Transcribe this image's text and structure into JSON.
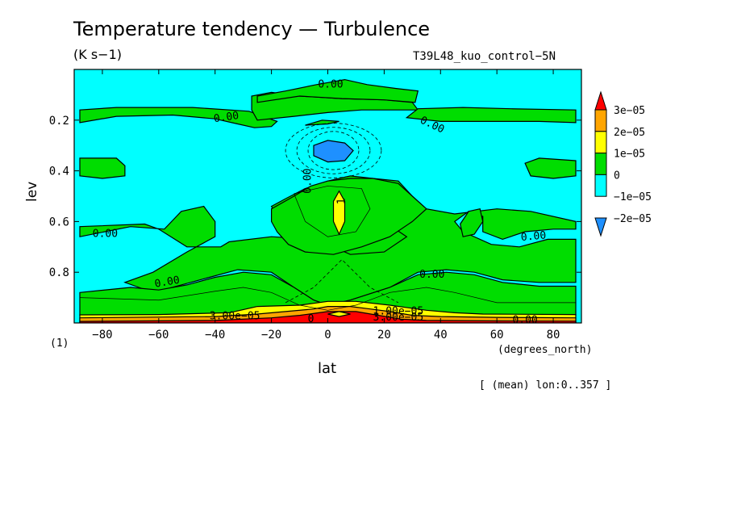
{
  "chart_data": {
    "type": "heatmap",
    "title": "Temperature tendency — Turbulence",
    "subtitle": "(K s−1)",
    "experiment": "T39L48_kuo_control−5N",
    "xlabel": "lat",
    "x_units": "(degrees_north)",
    "ylabel": "lev",
    "y_units": "(1)",
    "averaging_note": "[ (mean) lon:0..357 ]",
    "xlim": [
      -90,
      90
    ],
    "ylim": [
      1.0,
      0.0
    ],
    "x_ticks": [
      -80,
      -60,
      -40,
      -20,
      0,
      20,
      40,
      60,
      80
    ],
    "x_tick_labels": [
      "−80",
      "−60",
      "−40",
      "−20",
      "0",
      "20",
      "40",
      "60",
      "80"
    ],
    "y_ticks": [
      0.2,
      0.4,
      0.6,
      0.8
    ],
    "y_tick_labels": [
      "0.2",
      "0.4",
      "0.6",
      "0.8"
    ],
    "colorbar": {
      "levels": [
        -2e-05,
        -1e-05,
        0,
        1e-05,
        2e-05,
        3e-05
      ],
      "labels": [
        "−2e−05",
        "−1e−05",
        "0",
        "1e−05",
        "2e−05",
        "3e−05"
      ],
      "colors": [
        "#1e90ff",
        "#00ffff",
        "#00dd00",
        "#ffff00",
        "#ffa500",
        "#ff0000"
      ]
    },
    "background_color": "#00ffff",
    "contour_labels": [
      {
        "text": "0.00",
        "lat": 1,
        "lev": 0.06,
        "rot": 0
      },
      {
        "text": "0.00",
        "lat": -36,
        "lev": 0.19,
        "rot": -8
      },
      {
        "text": "0.00",
        "lat": 37,
        "lev": 0.22,
        "rot": 25
      },
      {
        "text": "0.00",
        "lat": -7,
        "lev": 0.44,
        "rot": -90
      },
      {
        "text": "0.00",
        "lat": -79,
        "lev": 0.65,
        "rot": 0
      },
      {
        "text": "0.00",
        "lat": 73,
        "lev": 0.66,
        "rot": -5
      },
      {
        "text": "0.00",
        "lat": -57,
        "lev": 0.84,
        "rot": -10
      },
      {
        "text": "0.00",
        "lat": 37,
        "lev": 0.81,
        "rot": 0
      },
      {
        "text": "1",
        "lat": 5,
        "lev": 0.52,
        "rot": -90
      },
      {
        "text": "0.00",
        "lat": 70,
        "lev": 0.99,
        "rot": 0
      },
      {
        "text": "1.00e−05",
        "lat": 25,
        "lev": 0.955,
        "rot": 0
      },
      {
        "text": "3.00e−05",
        "lat": -33,
        "lev": 0.975,
        "rot": 0
      },
      {
        "text": "3.00e−05",
        "lat": 25,
        "lev": 0.98,
        "rot": 0
      },
      {
        "text": "0",
        "lat": -6,
        "lev": 0.985,
        "rot": 0
      }
    ],
    "regions": [
      {
        "color": "#00dd00",
        "points": [
          [
            -88,
            0.21
          ],
          [
            -75,
            0.185
          ],
          [
            -55,
            0.18
          ],
          [
            -40,
            0.195
          ],
          [
            -32,
            0.215
          ],
          [
            -26,
            0.23
          ],
          [
            -20,
            0.225
          ],
          [
            -18,
            0.205
          ],
          [
            -28,
            0.165
          ],
          [
            -48,
            0.15
          ],
          [
            -75,
            0.15
          ],
          [
            -88,
            0.16
          ]
        ]
      },
      {
        "color": "#00dd00",
        "points": [
          [
            -25,
            0.2
          ],
          [
            -12,
            0.185
          ],
          [
            0,
            0.17
          ],
          [
            12,
            0.16
          ],
          [
            24,
            0.16
          ],
          [
            32,
            0.16
          ],
          [
            30,
            0.13
          ],
          [
            20,
            0.12
          ],
          [
            5,
            0.115
          ],
          [
            -10,
            0.105
          ],
          [
            -20,
            0.09
          ],
          [
            -27,
            0.105
          ],
          [
            -27,
            0.16
          ]
        ]
      },
      {
        "color": "#00dd00",
        "points": [
          [
            -25,
            0.105
          ],
          [
            -15,
            0.085
          ],
          [
            -4,
            0.06
          ],
          [
            6,
            0.04
          ],
          [
            14,
            0.06
          ],
          [
            24,
            0.075
          ],
          [
            32,
            0.085
          ],
          [
            31,
            0.13
          ],
          [
            20,
            0.12
          ],
          [
            5,
            0.115
          ],
          [
            -10,
            0.105
          ],
          [
            -25,
            0.13
          ]
        ]
      },
      {
        "color": "#00dd00",
        "points": [
          [
            -8,
            0.22
          ],
          [
            -2,
            0.2
          ],
          [
            4,
            0.205
          ],
          [
            0,
            0.215
          ]
        ]
      },
      {
        "color": "#00dd00",
        "points": [
          [
            88,
            0.16
          ],
          [
            65,
            0.155
          ],
          [
            48,
            0.15
          ],
          [
            32,
            0.155
          ],
          [
            28,
            0.19
          ],
          [
            40,
            0.205
          ],
          [
            58,
            0.205
          ],
          [
            75,
            0.205
          ],
          [
            88,
            0.21
          ]
        ]
      },
      {
        "color": "#00dd00",
        "points": [
          [
            -88,
            0.35
          ],
          [
            -75,
            0.35
          ],
          [
            -72,
            0.38
          ],
          [
            -72,
            0.42
          ],
          [
            -80,
            0.43
          ],
          [
            -88,
            0.42
          ]
        ]
      },
      {
        "color": "#00dd00",
        "points": [
          [
            88,
            0.36
          ],
          [
            75,
            0.35
          ],
          [
            70,
            0.37
          ],
          [
            72,
            0.42
          ],
          [
            80,
            0.43
          ],
          [
            88,
            0.42
          ]
        ]
      },
      {
        "color": "#00dd00",
        "points": [
          [
            -88,
            0.66
          ],
          [
            -70,
            0.62
          ],
          [
            -58,
            0.63
          ],
          [
            -52,
            0.56
          ],
          [
            -44,
            0.54
          ],
          [
            -40,
            0.6
          ],
          [
            -40,
            0.66
          ],
          [
            -50,
            0.72
          ],
          [
            -62,
            0.8
          ],
          [
            -72,
            0.84
          ],
          [
            -62,
            0.88
          ],
          [
            -52,
            0.85
          ],
          [
            -42,
            0.82
          ],
          [
            -32,
            0.79
          ],
          [
            -20,
            0.8
          ],
          [
            -12,
            0.86
          ],
          [
            -5,
            0.91
          ],
          [
            0,
            0.93
          ],
          [
            8,
            0.91
          ],
          [
            22,
            0.86
          ],
          [
            32,
            0.8
          ],
          [
            42,
            0.79
          ],
          [
            52,
            0.8
          ],
          [
            62,
            0.83
          ],
          [
            75,
            0.84
          ],
          [
            88,
            0.84
          ],
          [
            88,
            0.67
          ],
          [
            78,
            0.67
          ],
          [
            68,
            0.7
          ],
          [
            58,
            0.69
          ],
          [
            48,
            0.64
          ],
          [
            45,
            0.6
          ],
          [
            50,
            0.56
          ],
          [
            55,
            0.58
          ],
          [
            55,
            0.64
          ],
          [
            62,
            0.67
          ],
          [
            70,
            0.64
          ],
          [
            80,
            0.63
          ],
          [
            88,
            0.63
          ],
          [
            88,
            0.6
          ],
          [
            72,
            0.56
          ],
          [
            60,
            0.55
          ],
          [
            45,
            0.57
          ],
          [
            35,
            0.55
          ],
          [
            30,
            0.5
          ],
          [
            25,
            0.44
          ],
          [
            16,
            0.43
          ],
          [
            8,
            0.42
          ],
          [
            0,
            0.44
          ],
          [
            -8,
            0.47
          ],
          [
            -15,
            0.51
          ],
          [
            -20,
            0.54
          ],
          [
            -18,
            0.58
          ],
          [
            -10,
            0.6
          ],
          [
            -2,
            0.68
          ],
          [
            8,
            0.73
          ],
          [
            20,
            0.72
          ],
          [
            28,
            0.66
          ],
          [
            20,
            0.6
          ],
          [
            15,
            0.56
          ],
          [
            10,
            0.5
          ],
          [
            5,
            0.45
          ],
          [
            -2,
            0.46
          ],
          [
            -6,
            0.5
          ],
          [
            -5,
            0.57
          ],
          [
            0,
            0.62
          ],
          [
            -5,
            0.67
          ],
          [
            -20,
            0.66
          ],
          [
            -35,
            0.68
          ],
          [
            -38,
            0.7
          ],
          [
            -50,
            0.7
          ],
          [
            -60,
            0.63
          ],
          [
            -65,
            0.61
          ],
          [
            -88,
            0.62
          ]
        ]
      },
      {
        "color": "#00dd00",
        "points": [
          [
            -20,
            0.55
          ],
          [
            -12,
            0.5
          ],
          [
            -6,
            0.46
          ],
          [
            0,
            0.44
          ],
          [
            8,
            0.43
          ],
          [
            16,
            0.43
          ],
          [
            25,
            0.45
          ],
          [
            30,
            0.5
          ],
          [
            35,
            0.55
          ],
          [
            30,
            0.6
          ],
          [
            22,
            0.66
          ],
          [
            12,
            0.7
          ],
          [
            2,
            0.73
          ],
          [
            -8,
            0.72
          ],
          [
            -14,
            0.69
          ],
          [
            -18,
            0.64
          ],
          [
            -20,
            0.6
          ]
        ]
      },
      {
        "color": "#00dd00",
        "points": [
          [
            47,
            0.61
          ],
          [
            50,
            0.56
          ],
          [
            54,
            0.55
          ],
          [
            55,
            0.6
          ],
          [
            52,
            0.65
          ],
          [
            48,
            0.66
          ]
        ]
      },
      {
        "color": "#00dd00",
        "points": [
          [
            -88,
            0.88
          ],
          [
            -70,
            0.86
          ],
          [
            -60,
            0.87
          ],
          [
            -50,
            0.85
          ],
          [
            -40,
            0.82
          ],
          [
            -30,
            0.8
          ],
          [
            -20,
            0.81
          ],
          [
            -12,
            0.86
          ],
          [
            -5,
            0.91
          ],
          [
            0,
            0.93
          ],
          [
            8,
            0.91
          ],
          [
            22,
            0.86
          ],
          [
            32,
            0.81
          ],
          [
            42,
            0.8
          ],
          [
            52,
            0.81
          ],
          [
            62,
            0.84
          ],
          [
            75,
            0.855
          ],
          [
            88,
            0.855
          ],
          [
            88,
            0.97
          ],
          [
            -88,
            0.97
          ]
        ]
      },
      {
        "color": "#1e90ff",
        "points": [
          [
            -5,
            0.3
          ],
          [
            0,
            0.28
          ],
          [
            6,
            0.29
          ],
          [
            9,
            0.32
          ],
          [
            6,
            0.36
          ],
          [
            0,
            0.365
          ],
          [
            -5,
            0.34
          ]
        ]
      },
      {
        "color": "#ffff00",
        "points": [
          [
            2,
            0.52
          ],
          [
            4,
            0.48
          ],
          [
            6,
            0.52
          ],
          [
            6,
            0.6
          ],
          [
            4,
            0.65
          ],
          [
            2,
            0.6
          ]
        ]
      },
      {
        "color": "#ffff00",
        "points": [
          [
            -35,
            0.96
          ],
          [
            -25,
            0.935
          ],
          [
            -10,
            0.93
          ],
          [
            0,
            0.915
          ],
          [
            10,
            0.915
          ],
          [
            22,
            0.93
          ],
          [
            35,
            0.95
          ],
          [
            45,
            0.96
          ],
          [
            55,
            0.965
          ],
          [
            88,
            0.967
          ],
          [
            88,
            1.0
          ],
          [
            -88,
            1.0
          ],
          [
            -88,
            0.968
          ],
          [
            -60,
            0.967
          ]
        ]
      },
      {
        "color": "#ffa500",
        "points": [
          [
            -25,
            0.965
          ],
          [
            -15,
            0.955
          ],
          [
            -5,
            0.945
          ],
          [
            0,
            0.935
          ],
          [
            8,
            0.935
          ],
          [
            15,
            0.945
          ],
          [
            22,
            0.955
          ],
          [
            30,
            0.97
          ],
          [
            40,
            0.975
          ],
          [
            60,
            0.978
          ],
          [
            88,
            0.98
          ],
          [
            88,
            1.0
          ],
          [
            -88,
            1.0
          ],
          [
            -88,
            0.98
          ],
          [
            -40,
            0.975
          ]
        ]
      },
      {
        "color": "#ff0000",
        "points": [
          [
            -20,
            0.98
          ],
          [
            -10,
            0.97
          ],
          [
            0,
            0.955
          ],
          [
            10,
            0.955
          ],
          [
            18,
            0.97
          ],
          [
            26,
            0.985
          ],
          [
            35,
            0.99
          ],
          [
            60,
            0.992
          ],
          [
            88,
            0.993
          ],
          [
            88,
            1.0
          ],
          [
            -88,
            1.0
          ],
          [
            -88,
            0.994
          ],
          [
            -40,
            0.99
          ]
        ]
      },
      {
        "color": "#ffff00",
        "points": [
          [
            0,
            0.965
          ],
          [
            4,
            0.955
          ],
          [
            8,
            0.965
          ],
          [
            4,
            0.975
          ]
        ]
      }
    ]
  }
}
